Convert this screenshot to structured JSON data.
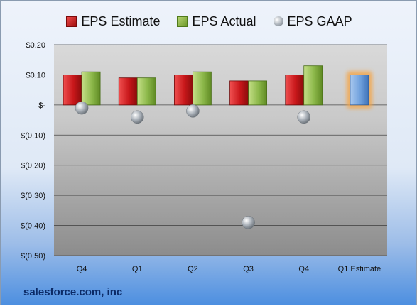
{
  "legend": {
    "estimate": "EPS Estimate",
    "actual": "EPS Actual",
    "gaap": "EPS GAAP"
  },
  "company": "salesforce.com, inc",
  "colors": {
    "estimate": "#c8171a",
    "actual": "#8cb84a",
    "gaap": "#9aa1a8",
    "projected": "#6fa0dc",
    "highlight": "#f4a64a"
  },
  "chart_data": {
    "type": "bar",
    "categories": [
      "Q4",
      "Q1",
      "Q2",
      "Q3",
      "Q4",
      "Q1 Estimate"
    ],
    "ylim": [
      -0.5,
      0.2
    ],
    "yticks": [
      0.2,
      0.1,
      0,
      -0.1,
      -0.2,
      -0.3,
      -0.4,
      -0.5
    ],
    "ytick_labels": [
      "$0.20",
      "$0.10",
      "$-",
      "$(0.10)",
      "$(0.20)",
      "$(0.30)",
      "$(0.40)",
      "$(0.50)"
    ],
    "legend_position": "top",
    "grid": true,
    "series": [
      {
        "name": "EPS Estimate",
        "values": [
          0.1,
          0.09,
          0.1,
          0.08,
          0.1,
          0.1
        ]
      },
      {
        "name": "EPS Actual",
        "values": [
          0.11,
          0.09,
          0.11,
          0.08,
          0.13,
          null
        ]
      },
      {
        "name": "EPS GAAP",
        "values": [
          -0.01,
          -0.04,
          -0.02,
          -0.39,
          -0.04,
          null
        ]
      }
    ],
    "projected_category": "Q1 Estimate"
  }
}
